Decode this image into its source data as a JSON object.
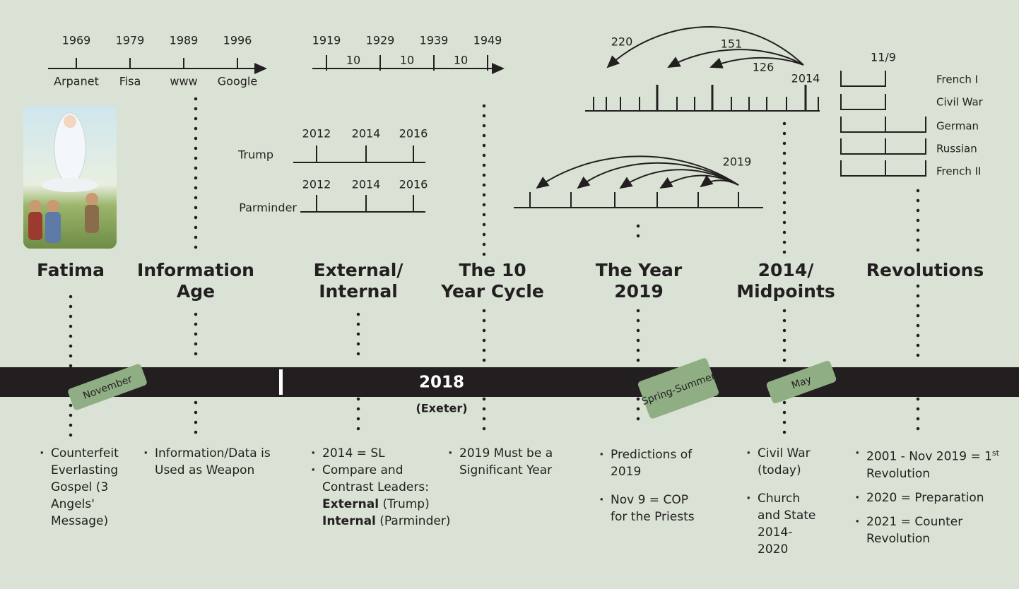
{
  "timeline": {
    "year": "2018",
    "location": "(Exeter)",
    "tags": [
      "November",
      "Spring-Summer",
      "May"
    ]
  },
  "headings": {
    "fatima": "Fatima",
    "information_age": [
      "Information",
      "Age"
    ],
    "external_internal": [
      "External/",
      "Internal"
    ],
    "ten_year_cycle": [
      "The 10",
      "Year Cycle"
    ],
    "year_2019": [
      "The Year",
      "2019"
    ],
    "midpoints": [
      "2014/",
      "Midpoints"
    ],
    "revolutions": "Revolutions"
  },
  "info_age": {
    "years": [
      "1969",
      "1979",
      "1989",
      "1996"
    ],
    "labels": [
      "Arpanet",
      "Fisa",
      "www",
      "Google"
    ]
  },
  "ten_year": {
    "years": [
      "1919",
      "1929",
      "1939",
      "1949"
    ],
    "gaps": [
      "10",
      "10",
      "10"
    ]
  },
  "leaders": [
    {
      "name": "Trump",
      "years": [
        "2012",
        "2014",
        "2016"
      ]
    },
    {
      "name": "Parminder",
      "years": [
        "2012",
        "2014",
        "2016"
      ]
    }
  ],
  "midpoint_diagram": {
    "spans": [
      "220",
      "151",
      "126"
    ],
    "year": "2014"
  },
  "year_diagram": {
    "year": "2019"
  },
  "revolution_diagram": {
    "date": "11/9",
    "rows": [
      "French I",
      "Civil War",
      "German",
      "Russian",
      "French II"
    ]
  },
  "bullets": {
    "fatima": [
      "Counterfeit Everlasting Gospel (3 Angels' Message)"
    ],
    "information_age": [
      "Information/Data is Used as Weapon"
    ],
    "external_internal": {
      "items": [
        "2014 = SL",
        "Compare and Contrast Leaders:"
      ],
      "leaders": [
        {
          "bold": "External",
          "text": "(Trump)"
        },
        {
          "bold": "Internal",
          "text": "(Parminder)"
        }
      ]
    },
    "ten_year_cycle": [
      "2019 Must be a Significant Year"
    ],
    "year_2019": [
      "Predictions of 2019",
      "Nov 9 = COP for the Priests"
    ],
    "midpoints": [
      "Civil War (today)",
      "Church and State 2014-2020"
    ],
    "revolutions": {
      "first": {
        "text": "2001 - Nov 2019 = 1",
        "sup": "st",
        "rest": "Revolution"
      },
      "items": [
        "2020 = Preparation",
        "2021 = Counter Revolution"
      ]
    }
  }
}
